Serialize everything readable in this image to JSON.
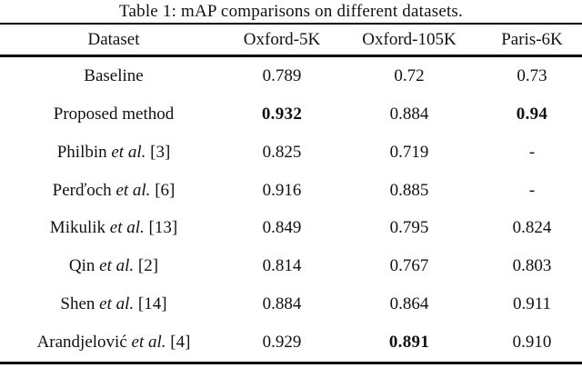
{
  "title": "Table 1: mAP comparisons on different datasets.",
  "colors": {
    "background": "#ffffff",
    "text": "#111111",
    "rule": "#000000"
  },
  "table": {
    "columns": [
      "Dataset",
      "Oxford-5K",
      "Oxford-105K",
      "Paris-6K"
    ],
    "rows": [
      {
        "method": {
          "name": "Baseline",
          "etal": "",
          "ref": ""
        },
        "values": [
          {
            "text": "0.789",
            "bold": false
          },
          {
            "text": "0.72",
            "bold": false
          },
          {
            "text": "0.73",
            "bold": false
          }
        ]
      },
      {
        "method": {
          "name": "Proposed method",
          "etal": "",
          "ref": ""
        },
        "values": [
          {
            "text": "0.932",
            "bold": true
          },
          {
            "text": "0.884",
            "bold": false
          },
          {
            "text": "0.94",
            "bold": true
          }
        ]
      },
      {
        "method": {
          "name": "Philbin",
          "etal": "et al.",
          "ref": "[3]"
        },
        "values": [
          {
            "text": "0.825",
            "bold": false
          },
          {
            "text": "0.719",
            "bold": false
          },
          {
            "text": "-",
            "bold": false
          }
        ]
      },
      {
        "method": {
          "name": "Perďoch",
          "etal": "et al.",
          "ref": "[6]"
        },
        "values": [
          {
            "text": "0.916",
            "bold": false
          },
          {
            "text": "0.885",
            "bold": false
          },
          {
            "text": "-",
            "bold": false
          }
        ]
      },
      {
        "method": {
          "name": "Mikulik",
          "etal": "et al.",
          "ref": "[13]"
        },
        "values": [
          {
            "text": "0.849",
            "bold": false
          },
          {
            "text": "0.795",
            "bold": false
          },
          {
            "text": "0.824",
            "bold": false
          }
        ]
      },
      {
        "method": {
          "name": "Qin",
          "etal": "et al.",
          "ref": "[2]"
        },
        "values": [
          {
            "text": "0.814",
            "bold": false
          },
          {
            "text": "0.767",
            "bold": false
          },
          {
            "text": "0.803",
            "bold": false
          }
        ]
      },
      {
        "method": {
          "name": "Shen",
          "etal": "et al.",
          "ref": "[14]"
        },
        "values": [
          {
            "text": "0.884",
            "bold": false
          },
          {
            "text": "0.864",
            "bold": false
          },
          {
            "text": "0.911",
            "bold": false
          }
        ]
      },
      {
        "method": {
          "name": "Arandjelović",
          "etal": "et al.",
          "ref": "[4]"
        },
        "values": [
          {
            "text": "0.929",
            "bold": false
          },
          {
            "text": "0.891",
            "bold": true
          },
          {
            "text": "0.910",
            "bold": false
          }
        ]
      }
    ]
  }
}
